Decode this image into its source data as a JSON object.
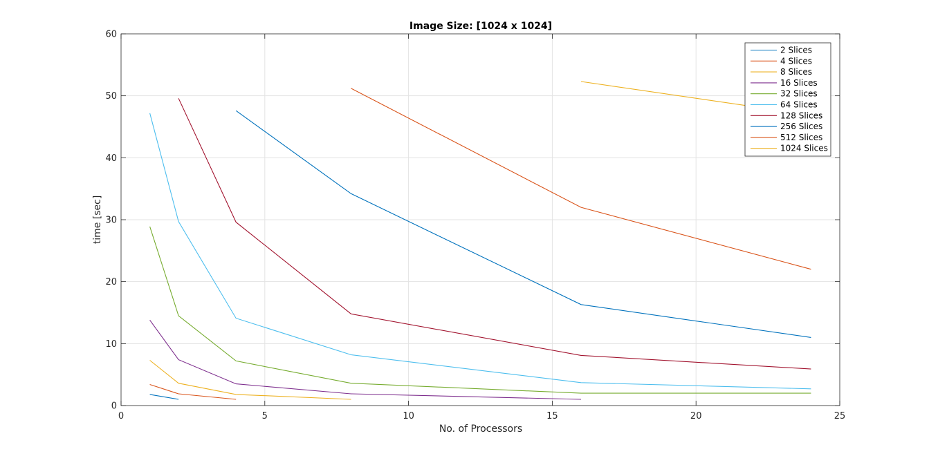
{
  "chart_data": {
    "type": "line",
    "title": "Image Size: [1024 x 1024]",
    "xlabel": "No. of Processors",
    "ylabel": "time [sec]",
    "xlim": [
      0,
      25
    ],
    "ylim": [
      0,
      60
    ],
    "xticks": [
      0,
      5,
      10,
      15,
      20,
      25
    ],
    "yticks": [
      0,
      10,
      20,
      30,
      40,
      50,
      60
    ],
    "grid": true,
    "legend_position": "top-right",
    "series": [
      {
        "name": "2 Slices",
        "color": "#0072BD",
        "x": [
          1,
          2
        ],
        "y": [
          1.8,
          1.0
        ]
      },
      {
        "name": "4 Slices",
        "color": "#D95319",
        "x": [
          1,
          2,
          4
        ],
        "y": [
          3.4,
          1.9,
          1.0
        ]
      },
      {
        "name": "8 Slices",
        "color": "#EDB120",
        "x": [
          1,
          2,
          4,
          8
        ],
        "y": [
          7.3,
          3.6,
          1.8,
          1.0
        ]
      },
      {
        "name": "16 Slices",
        "color": "#7E2F8E",
        "x": [
          1,
          2,
          4,
          8,
          16
        ],
        "y": [
          13.8,
          7.4,
          3.5,
          1.9,
          1.0
        ]
      },
      {
        "name": "32 Slices",
        "color": "#77AC30",
        "x": [
          1,
          2,
          4,
          8,
          16,
          24
        ],
        "y": [
          28.9,
          14.5,
          7.2,
          3.6,
          2.0,
          2.0
        ]
      },
      {
        "name": "64 Slices",
        "color": "#4DBEEE",
        "x": [
          1,
          2,
          4,
          8,
          16,
          24
        ],
        "y": [
          47.2,
          29.7,
          14.1,
          8.2,
          3.7,
          2.7
        ]
      },
      {
        "name": "128 Slices",
        "color": "#A2142F",
        "x": [
          2,
          4,
          8,
          16,
          24
        ],
        "y": [
          49.6,
          29.6,
          14.8,
          8.1,
          5.9
        ]
      },
      {
        "name": "256 Slices",
        "color": "#0072BD",
        "x": [
          4,
          8,
          16,
          24
        ],
        "y": [
          47.6,
          34.2,
          16.3,
          11.0
        ]
      },
      {
        "name": "512 Slices",
        "color": "#D95319",
        "x": [
          8,
          16,
          24
        ],
        "y": [
          51.2,
          32.0,
          22.0
        ]
      },
      {
        "name": "1024 Slices",
        "color": "#EDB120",
        "x": [
          16,
          24
        ],
        "y": [
          52.3,
          46.9
        ]
      }
    ]
  }
}
